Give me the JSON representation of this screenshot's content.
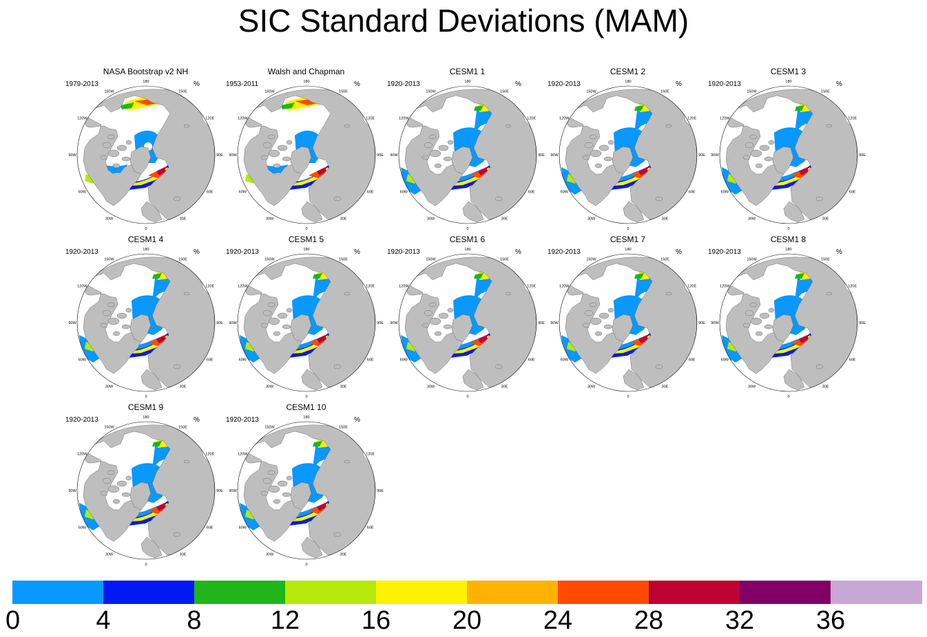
{
  "title": "SIC Standard Deviations (MAM)",
  "units": "%",
  "longitude_labels": [
    "180",
    "150E",
    "120E",
    "90E",
    "60E",
    "30E",
    "0",
    "30W",
    "60W",
    "90W",
    "120W",
    "150W"
  ],
  "panels": [
    {
      "title": "NASA Bootstrap v2 NH",
      "period": "1979-2013",
      "type": "obs"
    },
    {
      "title": "Walsh and Chapman",
      "period": "1953-2011",
      "type": "obs"
    },
    {
      "title": "CESM1 1",
      "period": "1920-2013",
      "type": "model"
    },
    {
      "title": "CESM1 2",
      "period": "1920-2013",
      "type": "model"
    },
    {
      "title": "CESM1 3",
      "period": "1920-2013",
      "type": "model"
    },
    {
      "title": "CESM1 4",
      "period": "1920-2013",
      "type": "model"
    },
    {
      "title": "CESM1 5",
      "period": "1920-2013",
      "type": "model"
    },
    {
      "title": "CESM1 6",
      "period": "1920-2013",
      "type": "model"
    },
    {
      "title": "CESM1 7",
      "period": "1920-2013",
      "type": "model"
    },
    {
      "title": "CESM1 8",
      "period": "1920-2013",
      "type": "model"
    },
    {
      "title": "CESM1 9",
      "period": "1920-2013",
      "type": "model"
    },
    {
      "title": "CESM1 10",
      "period": "1920-2013",
      "type": "model"
    }
  ],
  "colorbar": {
    "levels": [
      0,
      4,
      8,
      12,
      16,
      20,
      24,
      28,
      32,
      36
    ],
    "colors": [
      "#0898ff",
      "#0019f2",
      "#1fb61a",
      "#b6e80b",
      "#fff200",
      "#ffb300",
      "#ff4a00",
      "#bf0033",
      "#800066",
      "#c6a7d6"
    ]
  },
  "map_colors": {
    "land": "#bebebe",
    "coast": "#555555",
    "ocean": "#ffffff"
  }
}
